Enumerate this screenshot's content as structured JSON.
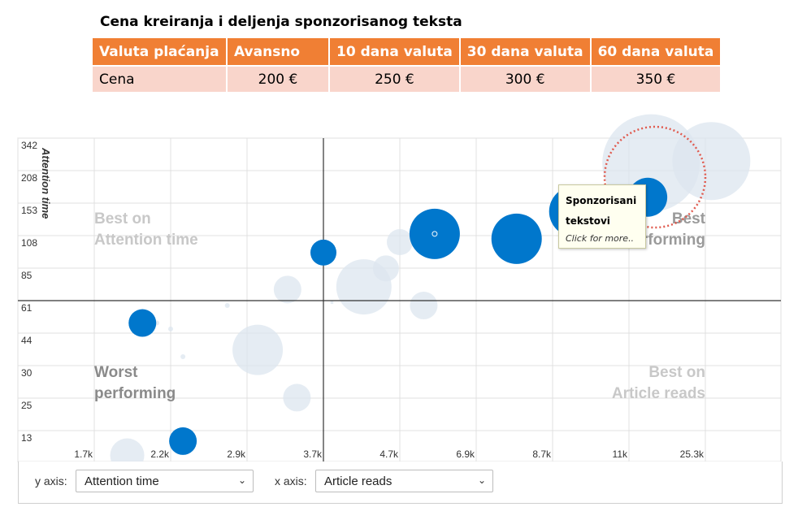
{
  "title": "Cena kreiranja i deljenja sponzorisanog teksta",
  "price_table": {
    "headers": [
      "Valuta plaćanja",
      "Avansno",
      "10 dana valuta",
      "30 dana valuta",
      "60 dana valuta"
    ],
    "row": [
      "Cena",
      "200 €",
      "250 €",
      "300 €",
      "350 €"
    ]
  },
  "chart_data": {
    "type": "scatter",
    "title": "",
    "xlabel": "Article reads",
    "ylabel": "Attention time",
    "x_ticks": [
      "1.7k",
      "2.2k",
      "2.9k",
      "3.7k",
      "4.7k",
      "6.9k",
      "8.7k",
      "11k",
      "25.3k"
    ],
    "y_ticks": [
      "342",
      "208",
      "153",
      "108",
      "85",
      "61",
      "44",
      "30",
      "25",
      "13"
    ],
    "quadrant_labels": {
      "top_left": "Best on\nAttention time",
      "top_right": "Best\nperforming",
      "bottom_left": "Worst\nperforming",
      "bottom_right": "Best on\nArticle reads"
    },
    "highlighted_series": "Sponzorisani tekstovi",
    "highlighted_points": [
      {
        "x": 2.0,
        "y": 52,
        "size": 17
      },
      {
        "x": 2.3,
        "y": 12,
        "size": 17
      },
      {
        "x": 3.7,
        "y": 100,
        "size": 16
      },
      {
        "x": 5.6,
        "y": 118,
        "size": 31
      },
      {
        "x": 7.8,
        "y": 112,
        "size": 31
      },
      {
        "x": 9.3,
        "y": 150,
        "size": 31
      },
      {
        "x": 13.5,
        "y": 172,
        "size": 24
      }
    ],
    "background_points": [
      {
        "x": 1.9,
        "y": 9,
        "size": 21
      },
      {
        "x": 2.1,
        "y": 52,
        "size": 3
      },
      {
        "x": 2.2,
        "y": 49,
        "size": 3
      },
      {
        "x": 2.3,
        "y": 36,
        "size": 3
      },
      {
        "x": 2.7,
        "y": 62,
        "size": 3
      },
      {
        "x": 3.0,
        "y": 39,
        "size": 31
      },
      {
        "x": 3.3,
        "y": 73,
        "size": 17
      },
      {
        "x": 3.4,
        "y": 26,
        "size": 17
      },
      {
        "x": 3.8,
        "y": 64,
        "size": 2
      },
      {
        "x": 4.2,
        "y": 75,
        "size": 34
      },
      {
        "x": 4.5,
        "y": 89,
        "size": 16
      },
      {
        "x": 4.7,
        "y": 108,
        "size": 16
      },
      {
        "x": 5.3,
        "y": 62,
        "size": 17
      },
      {
        "x": 14.0,
        "y": 258,
        "size": 60
      },
      {
        "x": 27.0,
        "y": 266,
        "size": 48
      }
    ]
  },
  "tooltip": {
    "title": "Sponzorisani tekstovi",
    "subtitle": "Click for more.."
  },
  "controls": {
    "y_axis_label": "y axis:",
    "y_axis_value": "Attention time",
    "x_axis_label": "x axis:",
    "x_axis_value": "Article reads"
  },
  "colors": {
    "highlight": "#0077cc",
    "background_bubble": "#dce6ef",
    "header": "#f07f34",
    "row": "#f9d5cb",
    "focus_ring": "#e05a4e"
  }
}
